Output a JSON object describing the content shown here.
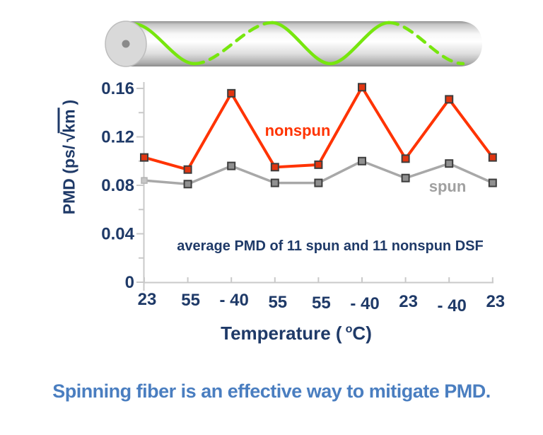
{
  "colors": {
    "navy_text": "#1f3a68",
    "axis_gray": "#c9c9c9",
    "nonspun_line": "#ff3300",
    "nonspun_marker_fill": "#e13510",
    "spun_line": "#a8a8a8",
    "spun_label": "#a0a0a0",
    "marker_border": "#3d3d3d",
    "caption_blue": "#4a7ec0",
    "fiber_wave_green": "#77e60e"
  },
  "chart_data": {
    "type": "line",
    "categories": [
      "23",
      "55",
      "- 40",
      "55",
      "55",
      "- 40",
      "23",
      "- 40",
      "23"
    ],
    "series": [
      {
        "name": "spun",
        "values": [
          0.084,
          0.081,
          0.096,
          0.082,
          0.082,
          0.1,
          0.086,
          0.098,
          0.082
        ],
        "color": "#a8a8a8",
        "marker_fill": "#909090",
        "label_color": "#a0a0a0"
      },
      {
        "name": "nonspun",
        "values": [
          0.103,
          0.093,
          0.156,
          0.095,
          0.097,
          0.161,
          0.102,
          0.151,
          0.103
        ],
        "color": "#ff3300",
        "marker_fill": "#e13510",
        "label_color": "#ff3300"
      }
    ],
    "ylabel": {
      "prefix": "PMD (ps/",
      "radicand": "km",
      "suffix": ")"
    },
    "xlabel": {
      "prefix": "Temperature (",
      "sup": "o",
      "suffix": "C)"
    },
    "ytick_labels": [
      "0",
      "0.04",
      "0.08",
      "0.12",
      "0.16"
    ],
    "ylim": [
      0,
      0.165
    ],
    "ytick_minor_step": 0.02,
    "annotation": "average PMD of 11 spun and 11 nonspun DSF",
    "grid": false,
    "legend": "inline series labels"
  },
  "caption": "Spinning fiber is an effective way to mitigate PMD."
}
